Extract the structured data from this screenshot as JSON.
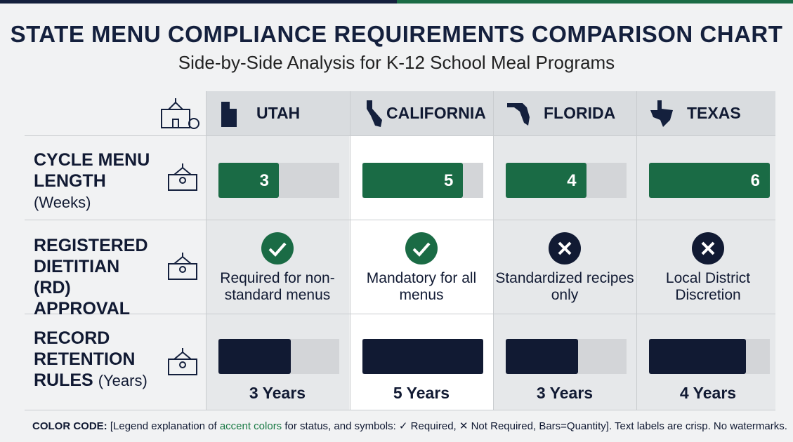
{
  "header": {
    "title": "STATE MENU COMPLIANCE REQUIREMENTS COMPARISON CHART",
    "subtitle": "Side-by-Side Analysis for K-12 School Meal Programs"
  },
  "states": [
    "UTAH",
    "CALIFORNIA",
    "FLORIDA",
    "TEXAS"
  ],
  "rows": [
    {
      "label": "CYCLE MENU LENGTH",
      "unit": "(Weeks)",
      "values": [
        3,
        5,
        4,
        6
      ]
    },
    {
      "label": "REGISTERED DIETITIAN (RD) APPROVAL",
      "status": [
        true,
        true,
        false,
        false
      ],
      "notes": [
        "Required for non-standard menus",
        "Mandatory for all menus",
        "Standardized recipes only",
        "Local District Discretion"
      ]
    },
    {
      "label": "RECORD RETENTION RULES",
      "unit": "(Years)",
      "values": [
        3,
        5,
        3,
        4
      ],
      "value_labels": [
        "3 Years",
        "5 Years",
        "3 Years",
        "4 Years"
      ]
    }
  ],
  "legend": {
    "lead": "COLOR CODE:",
    "before": "[Legend explanation of ",
    "accent": "accent colors",
    "after": " for status, and symbols: ✓ Required, ✕ Not Required, Bars=Quantity]. Text labels are crisp. No watermarks."
  }
}
